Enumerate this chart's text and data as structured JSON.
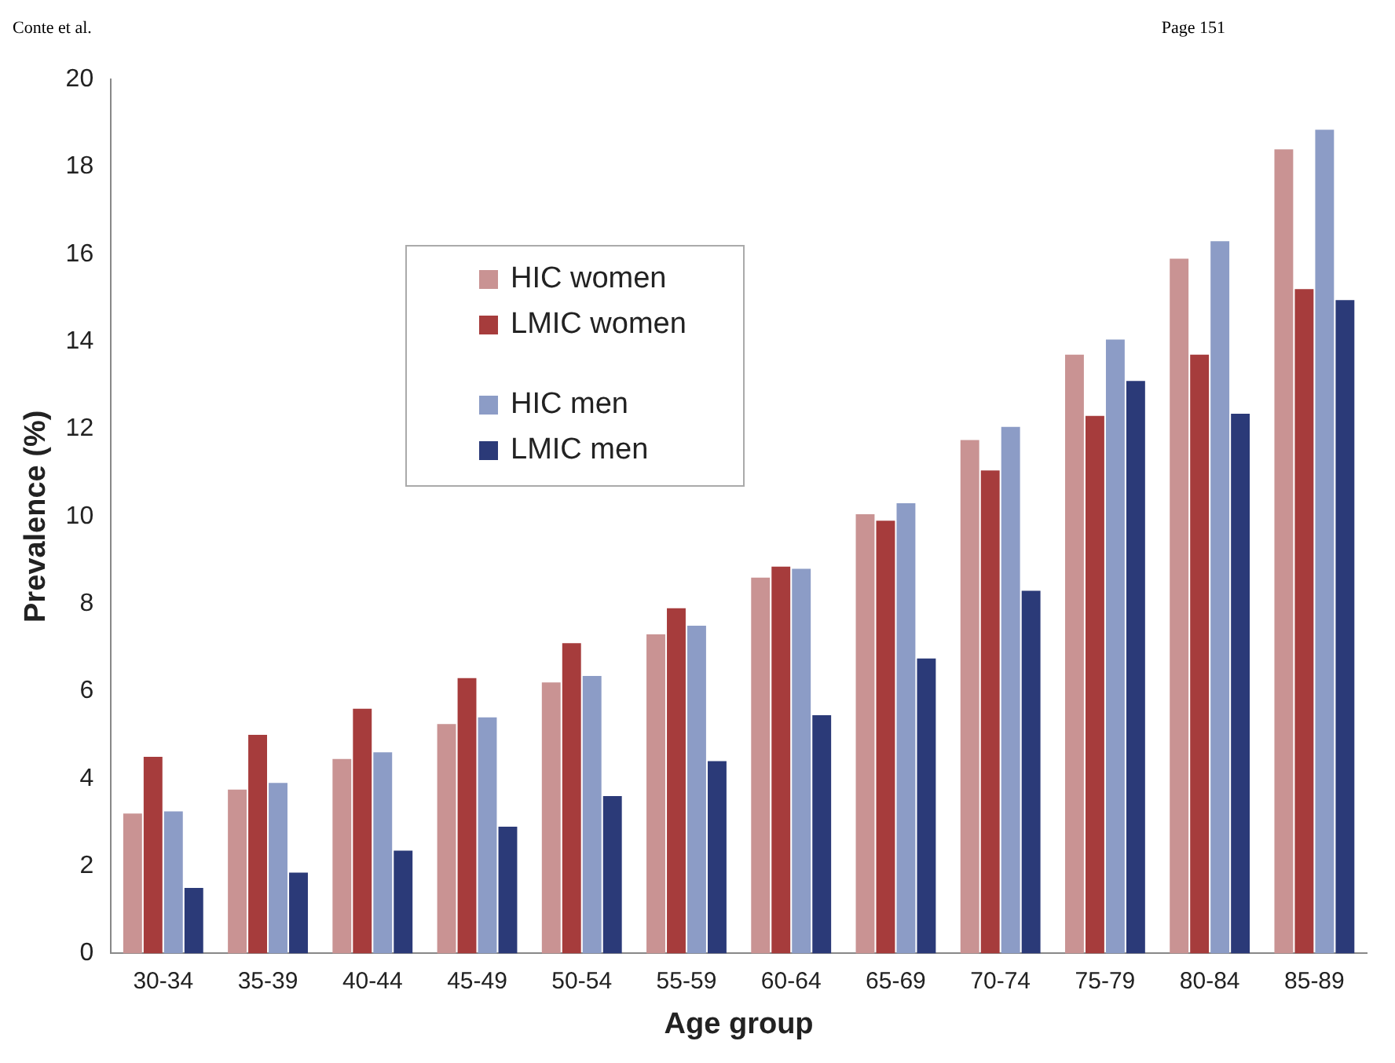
{
  "chart_data": {
    "type": "bar",
    "xlabel": "Age group",
    "ylabel": "Prevalence (%)",
    "annotations": [
      "Conte et al.",
      "Page 151"
    ],
    "categories": [
      "30-34",
      "35-39",
      "40-44",
      "45-49",
      "50-54",
      "55-59",
      "60-64",
      "65-69",
      "70-74",
      "75-79",
      "80-84",
      "85-89"
    ],
    "series": [
      {
        "name": "HIC women",
        "color": "#c99393",
        "values": [
          3.2,
          3.75,
          4.45,
          5.25,
          6.2,
          7.3,
          8.6,
          10.05,
          11.75,
          13.7,
          15.9,
          18.4
        ]
      },
      {
        "name": "LMIC women",
        "color": "#a63c3c",
        "values": [
          4.5,
          5.0,
          5.6,
          6.3,
          7.1,
          7.9,
          8.85,
          9.9,
          11.05,
          12.3,
          13.7,
          15.2
        ]
      },
      {
        "name": "HIC men",
        "color": "#8c9cc6",
        "values": [
          3.25,
          3.9,
          4.6,
          5.4,
          6.35,
          7.5,
          8.8,
          10.3,
          12.05,
          14.05,
          16.3,
          18.85
        ]
      },
      {
        "name": "LMIC men",
        "color": "#2b3a78",
        "values": [
          1.5,
          1.85,
          2.35,
          2.9,
          3.6,
          4.4,
          5.45,
          6.75,
          8.3,
          13.1,
          12.35,
          14.95
        ]
      }
    ],
    "ylim": [
      0,
      20
    ],
    "yticks": [
      0,
      2,
      4,
      6,
      8,
      10,
      12,
      14,
      16,
      18,
      20
    ],
    "grid": false,
    "legend": "top left"
  }
}
